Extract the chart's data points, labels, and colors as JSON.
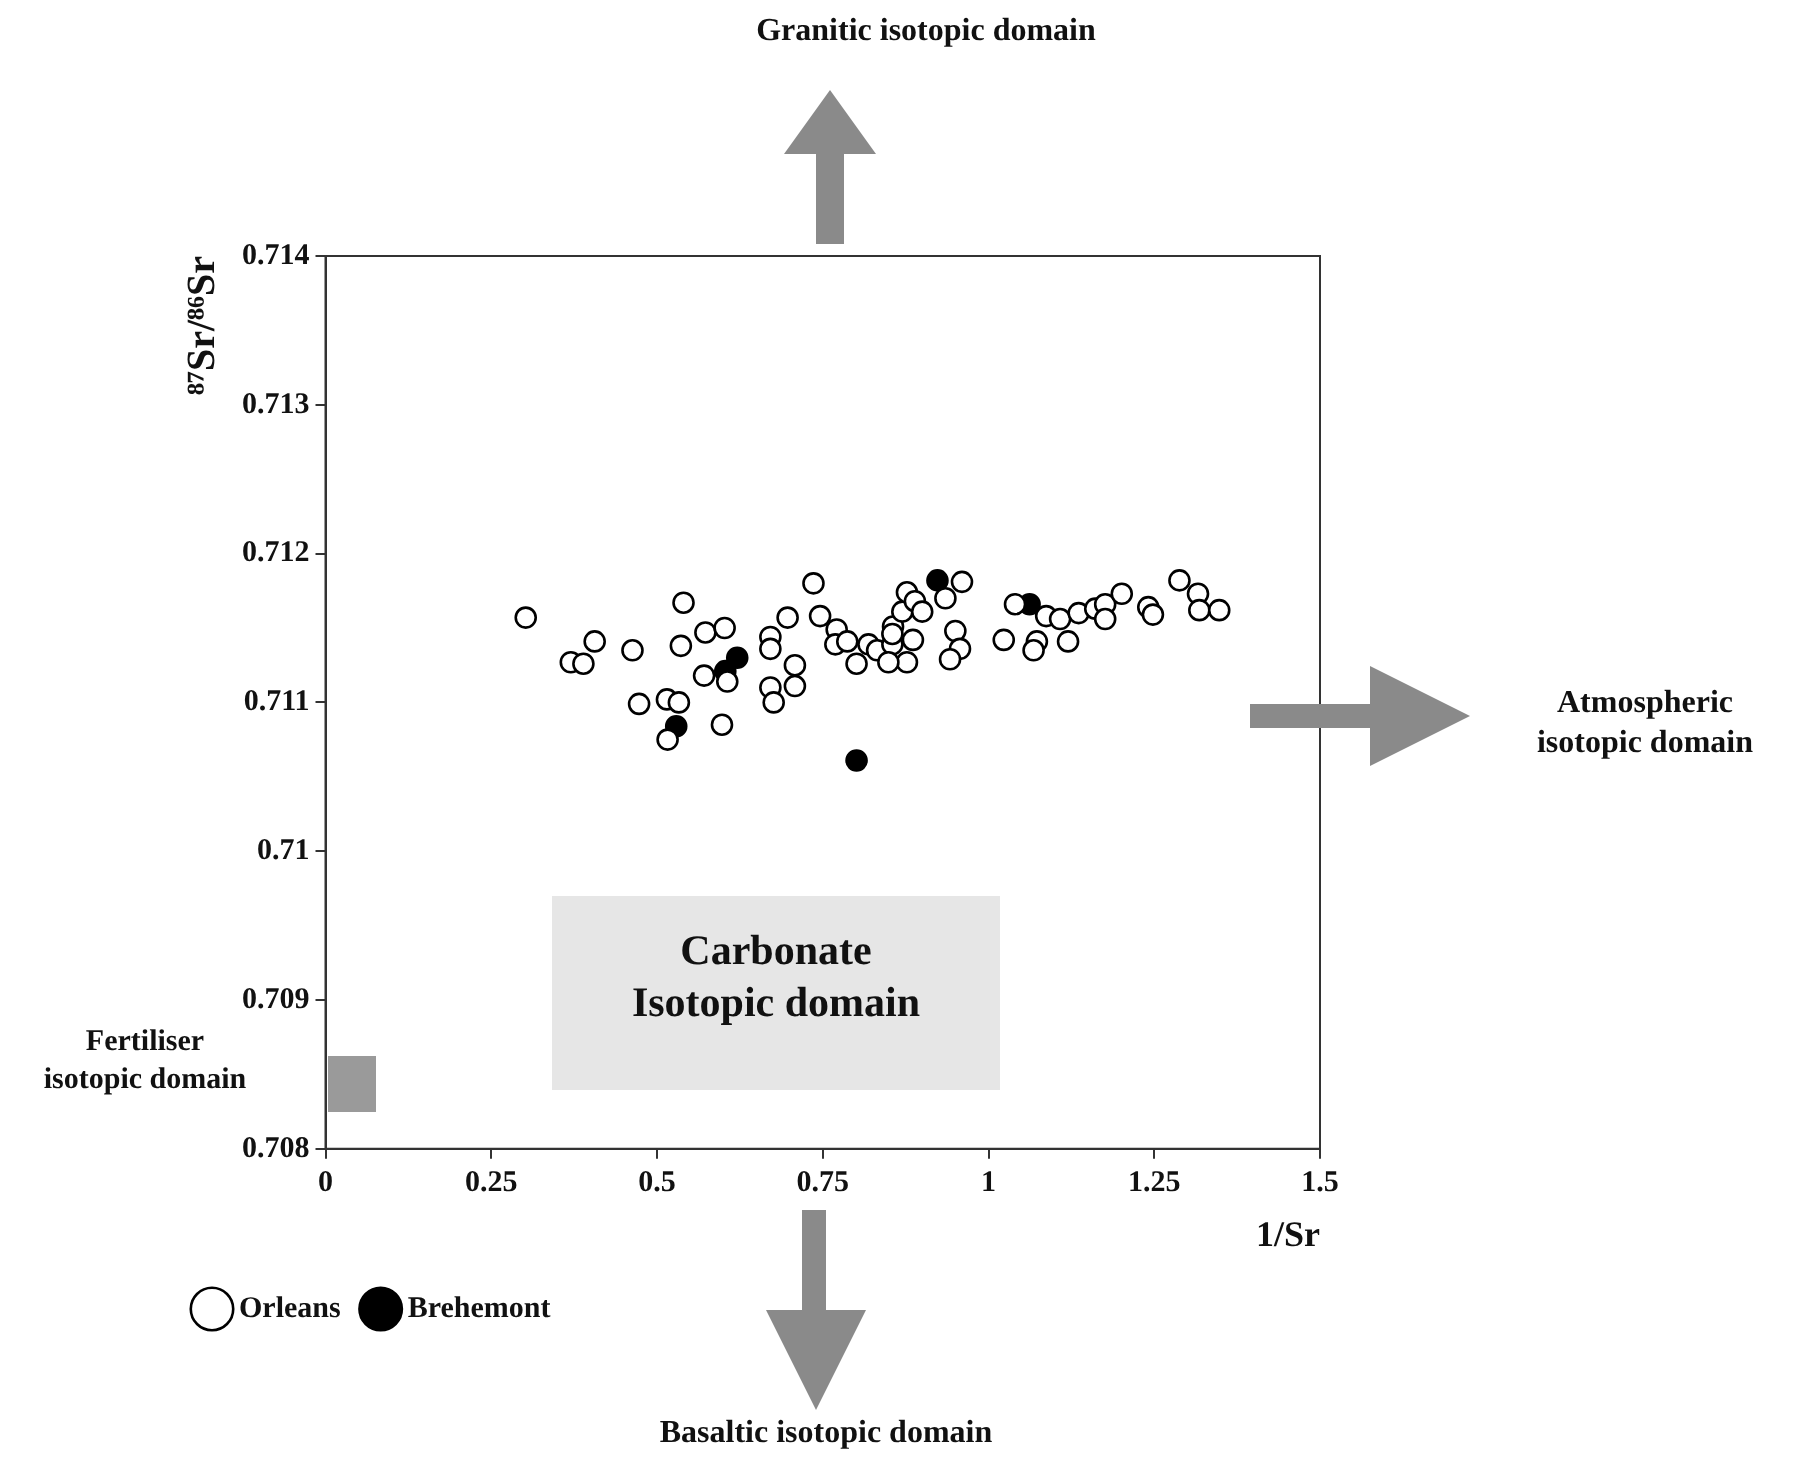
{
  "chart_data": {
    "type": "scatter",
    "xlabel": "1/Sr",
    "ylabel": "⁸⁷Sr/⁸⁶Sr",
    "xlim": [
      0,
      1.5
    ],
    "xticks": [
      0,
      0.25,
      0.5,
      0.75,
      1,
      1.25,
      1.5
    ],
    "ylim": [
      0.708,
      0.714
    ],
    "yticks": [
      0.708,
      0.709,
      0.71,
      0.711,
      0.712,
      0.713,
      0.714
    ],
    "marker": "circle",
    "legend": "bottom left",
    "annotations": [
      "Granitic isotopic domain",
      "Atmospheric\nisotopic domain",
      "Carbonate\nIsotopic domain",
      "Fertiliser\nisotopic domain",
      "Basaltic isotopic domain"
    ],
    "series": [
      {
        "name": "Orleans",
        "color": "#ffffff",
        "x": [
          0.302,
          0.37,
          0.389,
          0.406,
          0.463,
          0.54,
          0.536,
          0.573,
          0.602,
          0.571,
          0.606,
          0.473,
          0.515,
          0.533,
          0.516,
          0.598,
          0.671,
          0.671,
          0.697,
          0.708,
          0.671,
          0.676,
          0.708,
          0.736,
          0.746,
          0.771,
          0.769,
          0.787,
          0.801,
          0.819,
          0.832,
          0.855,
          0.856,
          0.87,
          0.877,
          0.877,
          0.886,
          0.889,
          0.9,
          0.855,
          0.849,
          0.935,
          0.96,
          0.95,
          0.957,
          0.942,
          1.023,
          1.04,
          1.073,
          1.068,
          1.087,
          1.108,
          1.12,
          1.136,
          1.161,
          1.176,
          1.176,
          1.201,
          1.241,
          1.248,
          1.288,
          1.316,
          1.318,
          1.348
        ],
        "values": [
          0.71157,
          0.71127,
          0.71126,
          0.71141,
          0.71135,
          0.71167,
          0.71138,
          0.71147,
          0.7115,
          0.71118,
          0.71114,
          0.71099,
          0.71102,
          0.711,
          0.71075,
          0.71085,
          0.71144,
          0.71136,
          0.71157,
          0.71125,
          0.7111,
          0.711,
          0.71111,
          0.7118,
          0.71158,
          0.71149,
          0.71139,
          0.71141,
          0.71126,
          0.71139,
          0.71135,
          0.71139,
          0.71151,
          0.71161,
          0.71174,
          0.71127,
          0.71142,
          0.71168,
          0.71161,
          0.71146,
          0.71127,
          0.7117,
          0.71181,
          0.71148,
          0.71136,
          0.71129,
          0.71142,
          0.71166,
          0.71141,
          0.71135,
          0.71158,
          0.71156,
          0.71141,
          0.7116,
          0.71163,
          0.71166,
          0.71156,
          0.71173,
          0.71164,
          0.71159,
          0.71182,
          0.71173,
          0.71162,
          0.71162
        ]
      },
      {
        "name": "Brehemont",
        "color": "#000000",
        "x": [
          0.621,
          0.603,
          0.529,
          0.801,
          0.923,
          1.062
        ],
        "values": [
          0.7113,
          0.71121,
          0.71084,
          0.71061,
          0.71182,
          0.71166
        ]
      }
    ]
  }
}
